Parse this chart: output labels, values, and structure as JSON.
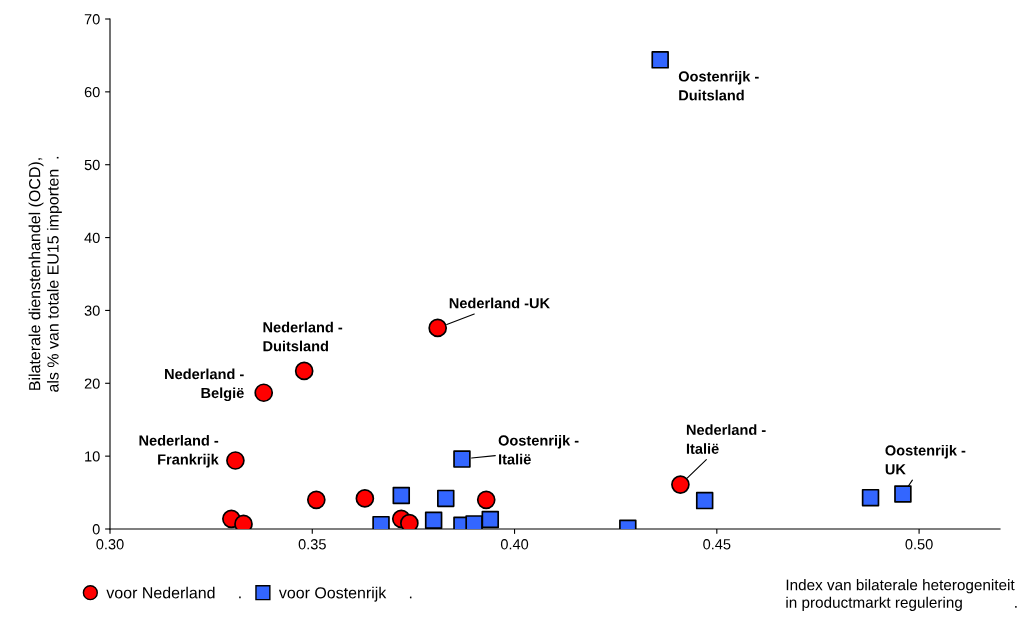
{
  "chart_data": {
    "type": "scatter",
    "xlabel": "Index van bilaterale heterogeniteit\nin productmarkt regulering            .",
    "ylabel": "Bilaterale dienstenhandel (OCD),\nals % van totale EU15 importen  .",
    "series": [
      {
        "name": "voor Nederland     .",
        "color": "#ff0000",
        "marker": "circle",
        "x": [
          0.331,
          0.33,
          0.333,
          0.338,
          0.348,
          0.351,
          0.363,
          0.372,
          0.374,
          0.381,
          0.393,
          0.441
        ],
        "values": [
          9.4,
          1.4,
          0.7,
          18.7,
          21.7,
          4.0,
          4.2,
          1.4,
          0.8,
          27.6,
          4.0,
          6.1
        ]
      },
      {
        "name": "voor Oostenrijk     .",
        "color": "#3366ff",
        "marker": "square",
        "x": [
          0.367,
          0.372,
          0.38,
          0.383,
          0.387,
          0.387,
          0.39,
          0.394,
          0.428,
          0.447,
          0.488,
          0.496,
          0.436
        ],
        "values": [
          0.6,
          4.6,
          1.2,
          4.2,
          9.6,
          0.5,
          0.7,
          1.3,
          0.1,
          3.9,
          4.3,
          4.8,
          64.4
        ]
      }
    ],
    "annotations": [
      {
        "text": "Oostenrijk -\nDuitsland",
        "x": 0.436,
        "y": 64.4
      },
      {
        "text": "Nederland -\nDuitsland",
        "x": 0.348,
        "y": 21.7
      },
      {
        "text": "Nederland -\nBelgië",
        "x": 0.338,
        "y": 18.7
      },
      {
        "text": "Nederland -\nFrankrijk",
        "x": 0.331,
        "y": 9.4
      },
      {
        "text": "Nederland -UK",
        "x": 0.381,
        "y": 27.6
      },
      {
        "text": "Oostenrijk -\nItalië",
        "x": 0.387,
        "y": 9.6
      },
      {
        "text": "Nederland -\nItalië",
        "x": 0.441,
        "y": 6.1
      },
      {
        "text": "Oostenrijk -\nUK",
        "x": 0.496,
        "y": 4.8
      }
    ],
    "xlim": [
      0.3,
      0.52
    ],
    "xticks": [
      {
        "value": 0.3,
        "label": "0.30"
      },
      {
        "value": 0.35,
        "label": "0.35"
      },
      {
        "value": 0.4,
        "label": "0.40"
      },
      {
        "value": 0.45,
        "label": "0.45"
      },
      {
        "value": 0.5,
        "label": "0.50"
      }
    ],
    "ylim": [
      0,
      70
    ],
    "yticks": [
      0,
      10,
      20,
      30,
      40,
      50,
      60,
      70
    ],
    "grid": false,
    "legend": "bottom left"
  }
}
